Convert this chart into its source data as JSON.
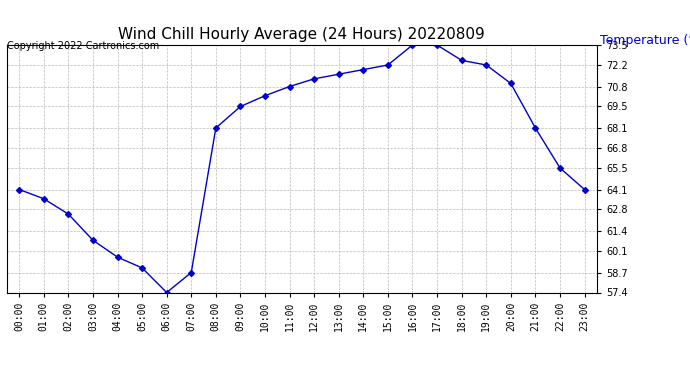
{
  "title": "Wind Chill Hourly Average (24 Hours) 20220809",
  "copyright": "Copyright 2022 Cartronics.com",
  "ylabel_text": "Temperature (°F)",
  "ylabel_color": "#0000cc",
  "line_color": "#0000cc",
  "marker": "D",
  "marker_size": 3,
  "x_labels": [
    "00:00",
    "01:00",
    "02:00",
    "03:00",
    "04:00",
    "05:00",
    "06:00",
    "07:00",
    "08:00",
    "09:00",
    "10:00",
    "11:00",
    "12:00",
    "13:00",
    "14:00",
    "15:00",
    "16:00",
    "17:00",
    "18:00",
    "19:00",
    "20:00",
    "21:00",
    "22:00",
    "23:00"
  ],
  "y_values": [
    64.1,
    63.5,
    62.5,
    60.8,
    59.7,
    59.0,
    57.4,
    58.7,
    68.1,
    69.5,
    70.2,
    70.8,
    71.3,
    71.6,
    71.9,
    72.2,
    73.5,
    73.5,
    72.5,
    72.2,
    71.0,
    68.1,
    65.5,
    64.1
  ],
  "ylim_min": 57.4,
  "ylim_max": 73.5,
  "yticks": [
    57.4,
    58.7,
    60.1,
    61.4,
    62.8,
    64.1,
    65.5,
    66.8,
    68.1,
    69.5,
    70.8,
    72.2,
    73.5
  ],
  "background_color": "#ffffff",
  "grid_color": "#bbbbbb",
  "title_fontsize": 11,
  "copyright_fontsize": 7,
  "ylabel_fontsize": 9,
  "tick_fontsize": 7,
  "border_color": "#000000"
}
